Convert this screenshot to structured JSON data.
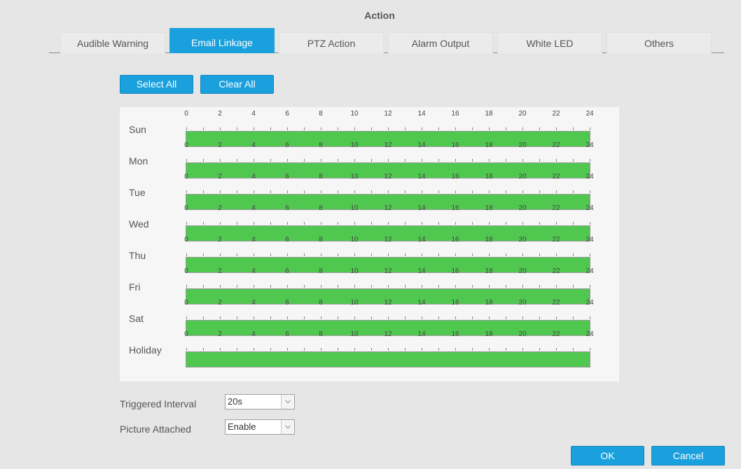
{
  "dialog": {
    "title": "Action"
  },
  "tabs": [
    {
      "label": "Audible Warning",
      "active": false
    },
    {
      "label": "Email Linkage",
      "active": true
    },
    {
      "label": "PTZ Action",
      "active": false
    },
    {
      "label": "Alarm Output",
      "active": false
    },
    {
      "label": "White LED",
      "active": false
    },
    {
      "label": "Others",
      "active": false
    }
  ],
  "toolbar": {
    "select_all_label": "Select All",
    "clear_all_label": "Clear All"
  },
  "schedule": {
    "hour_ticks": [
      "0",
      "2",
      "4",
      "6",
      "8",
      "10",
      "12",
      "14",
      "16",
      "18",
      "20",
      "22",
      "24"
    ],
    "fill_color": "#50c850",
    "days": [
      {
        "label": "Sun",
        "start_hour": 0,
        "end_hour": 24
      },
      {
        "label": "Mon",
        "start_hour": 0,
        "end_hour": 24
      },
      {
        "label": "Tue",
        "start_hour": 0,
        "end_hour": 24
      },
      {
        "label": "Wed",
        "start_hour": 0,
        "end_hour": 24
      },
      {
        "label": "Thu",
        "start_hour": 0,
        "end_hour": 24
      },
      {
        "label": "Fri",
        "start_hour": 0,
        "end_hour": 24
      },
      {
        "label": "Sat",
        "start_hour": 0,
        "end_hour": 24
      },
      {
        "label": "Holiday",
        "start_hour": 0,
        "end_hour": 24
      }
    ]
  },
  "settings": {
    "triggered_interval": {
      "label": "Triggered Interval",
      "value": "20s"
    },
    "picture_attached": {
      "label": "Picture Attached",
      "value": "Enable"
    }
  },
  "footer": {
    "ok_label": "OK",
    "cancel_label": "Cancel"
  },
  "colors": {
    "accent": "#1aa0dc",
    "schedule_fill": "#50c850"
  }
}
